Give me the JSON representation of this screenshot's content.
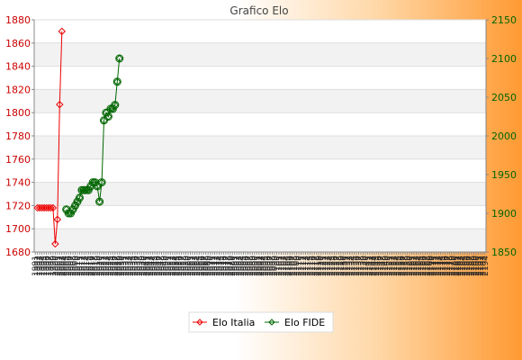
{
  "chart_data": {
    "type": "line",
    "title": "Grafico Elo",
    "xlabel": "",
    "ylabel_left": "",
    "ylabel_right": "",
    "y_left": {
      "range": [
        1680,
        1880
      ],
      "ticks": [
        1680,
        1700,
        1720,
        1740,
        1760,
        1780,
        1800,
        1820,
        1840,
        1860,
        1880
      ]
    },
    "y_right": {
      "range": [
        1850,
        2150
      ],
      "ticks": [
        1850,
        1900,
        1950,
        2000,
        2050,
        2100,
        2150
      ]
    },
    "grid": true,
    "legend_position": "bottom-center",
    "x_ticks": [
      "1991",
      "1992",
      "1993",
      "1994",
      "1995",
      "1996",
      "1997",
      "1998",
      "1999",
      "2000",
      "2001",
      "2002",
      "2003",
      "2004",
      "2005",
      "2006",
      "2007",
      "2008",
      "2009",
      "2010",
      "2011",
      "2012",
      "2013",
      "2014",
      "2015",
      "2016",
      "2017",
      "2018",
      "2019",
      "2020",
      "2021",
      "2022",
      "2023",
      "2024",
      "2025",
      "2026",
      "2027",
      "2028",
      "2029",
      "2030",
      "2031",
      "2032",
      "2033",
      "2034",
      "2035",
      "2036",
      "2037",
      "2038",
      "2039",
      "2040",
      "2041",
      "2042",
      "2043",
      "2044",
      "2045",
      "2046",
      "2047",
      "2048",
      "2049",
      "2050",
      "2051",
      "2052",
      "2053",
      "2054",
      "2055",
      "2056",
      "2057",
      "2058",
      "2059",
      "2060",
      "2061",
      "2062",
      "2063",
      "2064",
      "2065",
      "2066",
      "2067",
      "2068",
      "2069",
      "2070",
      "2071",
      "2072",
      "2073",
      "2074",
      "2075",
      "2076",
      "2077",
      "2078",
      "2079",
      "2080",
      "2081",
      "2082",
      "2083",
      "2084",
      "2085",
      "2086",
      "2087",
      "2088",
      "2089",
      "2090",
      "2091",
      "2092",
      "2093",
      "2094",
      "2095",
      "2096",
      "2097",
      "2098",
      "2099",
      "2100",
      "2101",
      "2102",
      "2103",
      "2104",
      "2105",
      "2106",
      "2107",
      "2108",
      "2109",
      "2110",
      "2111",
      "2112",
      "2113",
      "2114",
      "2115",
      "2116",
      "2117",
      "2118",
      "2119",
      "2120",
      "2121",
      "2122",
      "2123",
      "2124",
      "2125",
      "2126",
      "2127",
      "2128",
      "2129",
      "2130",
      "2131",
      "2132",
      "2133",
      "2134",
      "2135",
      "2136",
      "2137",
      "2138",
      "2139",
      "2140",
      "2141",
      "2142",
      "2143",
      "2144",
      "2145",
      "2146",
      "2147",
      "2148",
      "2149",
      "2150",
      "2151",
      "2152",
      "2153",
      "2154",
      "2155",
      "2156",
      "2157",
      "2158",
      "2159",
      "2160",
      "2161",
      "2162",
      "2163",
      "2164",
      "2165",
      "2166",
      "2167",
      "2168",
      "2169",
      "2170",
      "2171",
      "2172",
      "2173",
      "2174",
      "2175",
      "2176",
      "2177",
      "2178",
      "2179",
      "2180",
      "2181",
      "2182",
      "2183",
      "2184",
      "2185",
      "2186",
      "2187",
      "2188",
      "2189",
      "2190",
      "2191",
      "2192",
      "2193",
      "2194"
    ],
    "series": [
      {
        "name": "Elo Italia",
        "axis": "left",
        "color": "#ee0000",
        "marker": "diamond",
        "x": [
          1,
          2,
          3,
          4,
          5,
          6,
          7,
          8,
          9,
          10,
          11,
          12
        ],
        "values": [
          1718,
          1718,
          1718,
          1718,
          1718,
          1718,
          1718,
          1718,
          1687,
          1708,
          1807,
          1870
        ]
      },
      {
        "name": "Elo FIDE",
        "axis": "right",
        "color": "#006600",
        "marker": "circle-diamond",
        "x": [
          14,
          15,
          16,
          17,
          18,
          19,
          20,
          21,
          22,
          23,
          24,
          25,
          26,
          27,
          28,
          29,
          30,
          31,
          32,
          33,
          34,
          35,
          36,
          37,
          38
        ],
        "values": [
          1905,
          1900,
          1900,
          1905,
          1910,
          1915,
          1920,
          1930,
          1930,
          1930,
          1930,
          1935,
          1940,
          1940,
          1935,
          1915,
          1940,
          2020,
          2030,
          2025,
          2035,
          2035,
          2040,
          2070,
          2100
        ]
      }
    ],
    "legend": [
      "Elo Italia",
      "Elo FIDE"
    ]
  }
}
